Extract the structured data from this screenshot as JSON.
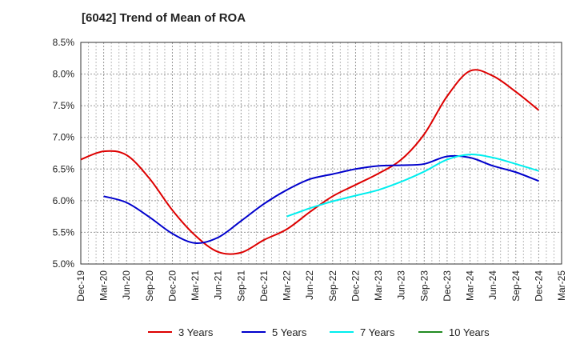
{
  "chart_data": {
    "type": "line",
    "title": "[6042]  Trend of Mean of ROA",
    "xlabel": "",
    "ylabel": "",
    "ylim": [
      5.0,
      8.5
    ],
    "yticks": [
      "5.0%",
      "5.5%",
      "6.0%",
      "6.5%",
      "7.0%",
      "7.5%",
      "8.0%",
      "8.5%"
    ],
    "ytick_values": [
      5.0,
      5.5,
      6.0,
      6.5,
      7.0,
      7.5,
      8.0,
      8.5
    ],
    "xticks": [
      "Dec-19",
      "Mar-20",
      "Jun-20",
      "Sep-20",
      "Dec-20",
      "Mar-21",
      "Jun-21",
      "Sep-21",
      "Dec-21",
      "Mar-22",
      "Jun-22",
      "Sep-22",
      "Dec-22",
      "Mar-23",
      "Jun-23",
      "Sep-23",
      "Dec-23",
      "Mar-24",
      "Jun-24",
      "Sep-24",
      "Dec-24",
      "Mar-25"
    ],
    "grid": true,
    "legend_position": "bottom",
    "series": [
      {
        "name": "3 Years",
        "color": "#dd0000",
        "values": [
          6.65,
          6.78,
          6.72,
          6.35,
          5.85,
          5.45,
          5.19,
          5.18,
          5.38,
          5.55,
          5.82,
          6.07,
          6.25,
          6.43,
          6.65,
          7.05,
          7.65,
          8.05,
          7.97,
          7.72,
          7.43
        ]
      },
      {
        "name": "5 Years",
        "color": "#0000cc",
        "values": [
          null,
          6.07,
          5.97,
          5.74,
          5.48,
          5.33,
          5.42,
          5.68,
          5.95,
          6.17,
          6.34,
          6.42,
          6.5,
          6.55,
          6.56,
          6.58,
          6.7,
          6.68,
          6.55,
          6.45,
          6.31
        ]
      },
      {
        "name": "7 Years",
        "color": "#00eeee",
        "values": [
          null,
          null,
          null,
          null,
          null,
          null,
          null,
          null,
          null,
          5.75,
          5.88,
          5.99,
          6.08,
          6.17,
          6.3,
          6.46,
          6.65,
          6.73,
          6.68,
          6.58,
          6.47
        ]
      },
      {
        "name": "10 Years",
        "color": "#228B22",
        "values": []
      }
    ]
  }
}
